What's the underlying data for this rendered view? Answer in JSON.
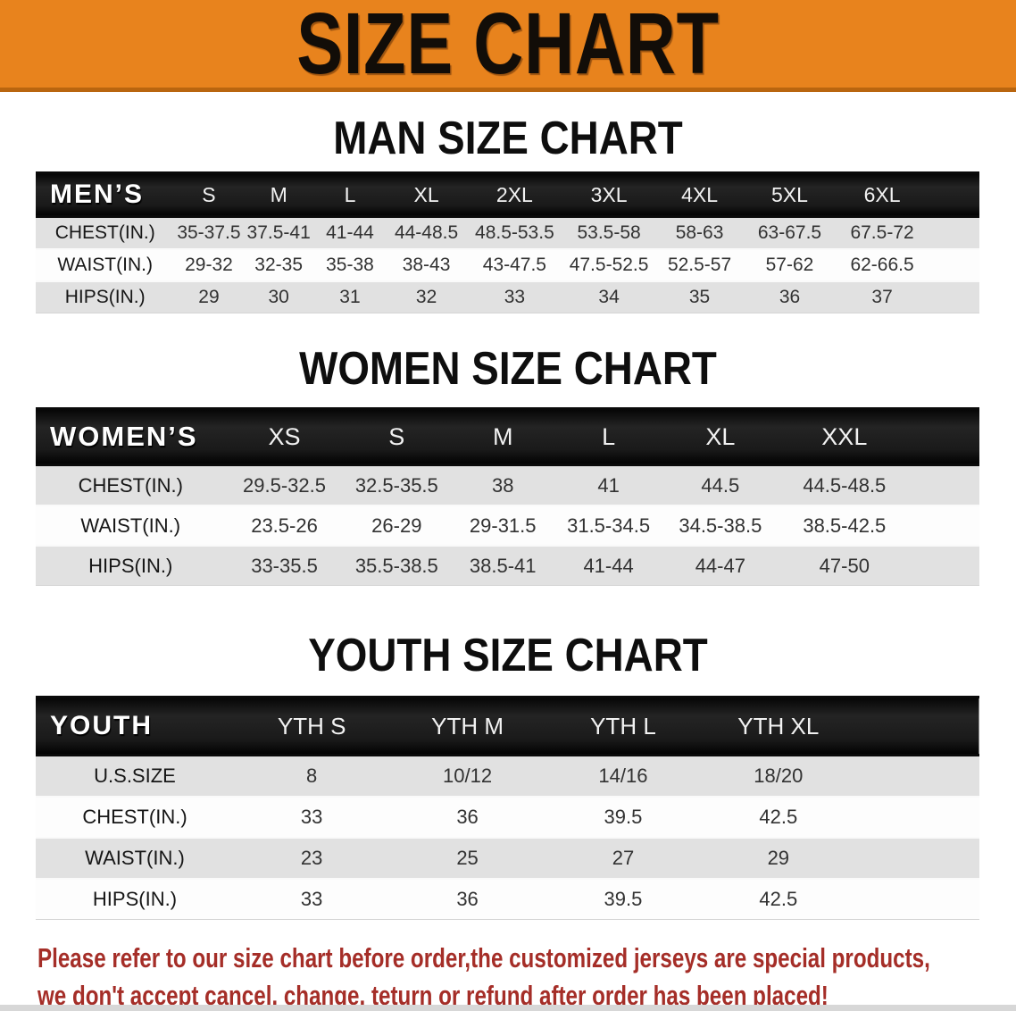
{
  "banner": {
    "title": "SIZE CHART",
    "bg_color": "#e8831d"
  },
  "sections": [
    {
      "heading": "MAN SIZE CHART",
      "table": {
        "label": "MEN’S",
        "columns": [
          "S",
          "M",
          "L",
          "XL",
          "2XL",
          "3XL",
          "4XL",
          "5XL",
          "6XL"
        ],
        "rows": [
          {
            "label": "CHEST(IN.)",
            "values": [
              "35-37.5",
              "37.5-41",
              "41-44",
              "44-48.5",
              "48.5-53.5",
              "53.5-58",
              "58-63",
              "63-67.5",
              "67.5-72"
            ]
          },
          {
            "label": "WAIST(IN.)",
            "values": [
              "29-32",
              "32-35",
              "35-38",
              "38-43",
              "43-47.5",
              "47.5-52.5",
              "52.5-57",
              "57-62",
              "62-66.5"
            ]
          },
          {
            "label": "HIPS(IN.)",
            "values": [
              "29",
              "30",
              "31",
              "32",
              "33",
              "34",
              "35",
              "36",
              "37"
            ]
          }
        ]
      }
    },
    {
      "heading": "WOMEN SIZE CHART",
      "table": {
        "label": "WOMEN’S",
        "columns": [
          "XS",
          "S",
          "M",
          "L",
          "XL",
          "XXL"
        ],
        "rows": [
          {
            "label": "CHEST(IN.)",
            "values": [
              "29.5-32.5",
              "32.5-35.5",
              "38",
              "41",
              "44.5",
              "44.5-48.5"
            ]
          },
          {
            "label": "WAIST(IN.)",
            "values": [
              "23.5-26",
              "26-29",
              "29-31.5",
              "31.5-34.5",
              "34.5-38.5",
              "38.5-42.5"
            ]
          },
          {
            "label": "HIPS(IN.)",
            "values": [
              "33-35.5",
              "35.5-38.5",
              "38.5-41",
              "41-44",
              "44-47",
              "47-50"
            ]
          }
        ]
      }
    },
    {
      "heading": "YOUTH SIZE CHART",
      "table": {
        "label": "YOUTH",
        "columns": [
          "YTH S",
          "YTH M",
          "YTH L",
          "YTH XL"
        ],
        "rows": [
          {
            "label": "U.S.SIZE",
            "values": [
              "8",
              "10/12",
              "14/16",
              "18/20"
            ]
          },
          {
            "label": "CHEST(IN.)",
            "values": [
              "33",
              "36",
              "39.5",
              "42.5"
            ]
          },
          {
            "label": "WAIST(IN.)",
            "values": [
              "23",
              "25",
              "27",
              "29"
            ]
          },
          {
            "label": "HIPS(IN.)",
            "values": [
              "33",
              "36",
              "39.5",
              "42.5"
            ]
          }
        ]
      }
    }
  ],
  "footer": {
    "line1": "Please refer to our size chart before order,the customized jerseys are special products,",
    "line2": "we don't accept cancel, change, teturn or refund after order has been placed!",
    "text_color": "#a52e28"
  }
}
